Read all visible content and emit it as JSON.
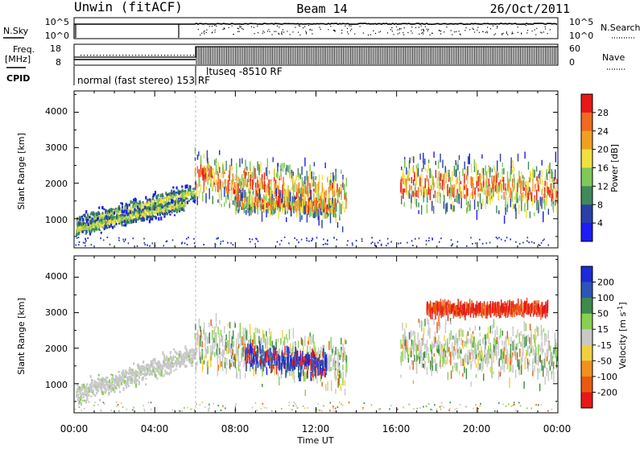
{
  "header": {
    "title_left": "Unwin (fitACF)",
    "title_center": "Beam 14",
    "title_right": "26/Oct/2011"
  },
  "status_panels": {
    "noise_left_label": "N.Sky",
    "noise_right_label": "N.Search",
    "noise_ticks_left": [
      "10^5",
      "10^0"
    ],
    "noise_ticks_right": [
      "10^5",
      "10^0"
    ],
    "freq_label_top": "Freq.",
    "freq_label_bottom": "[MHz]",
    "freq_ticks": [
      "18",
      "8"
    ],
    "nave_ticks": [
      "60",
      "0"
    ],
    "nave_label": "Nave",
    "cpid_label": "CPID",
    "cpid_segments": [
      {
        "label": "normal (fast stereo) 153 RF",
        "start_hour": 0,
        "end_hour": 6.05
      },
      {
        "label": "ltuseq -8510 RF",
        "start_hour": 6.05,
        "end_hour": 24
      }
    ]
  },
  "chart_data": [
    {
      "type": "heatmap",
      "panel": "power",
      "xlabel": "",
      "ylabel": "Slant Range [km]",
      "xlim": [
        0,
        24
      ],
      "ylim": [
        180,
        4600
      ],
      "yticks": [
        "1000",
        "2000",
        "3000",
        "4000"
      ],
      "colorbar": {
        "label": "Power [dB]",
        "ticks": [
          "4",
          "8",
          "12",
          "16",
          "20",
          "24",
          "28"
        ],
        "colors": [
          "#1c1cf5",
          "#2a3fa8",
          "#3f8a5a",
          "#7fc85a",
          "#f0e040",
          "#f0a020",
          "#f06a20",
          "#e81818"
        ]
      },
      "scatter_regions": [
        {
          "from_hour": 0.1,
          "to_hour": 6.0,
          "center_start": 850,
          "center_end": 1750,
          "spread": 220
        },
        {
          "from_hour": 0.1,
          "to_hour": 5.5,
          "center_start": 700,
          "center_end": 1400,
          "spread": 180
        },
        {
          "from_hour": 6.0,
          "to_hour": 13.5,
          "center_start": 2200,
          "center_end": 1600,
          "spread": 650
        },
        {
          "from_hour": 8.0,
          "to_hour": 13.0,
          "center_start": 1500,
          "center_end": 1300,
          "spread": 250
        },
        {
          "from_hour": 16.2,
          "to_hour": 24,
          "center_start": 2000,
          "center_end": 1800,
          "spread": 650
        }
      ]
    },
    {
      "type": "heatmap",
      "panel": "velocity",
      "xlabel": "Time UT",
      "ylabel": "Slant Range [km]",
      "xlim": [
        0,
        24
      ],
      "ylim": [
        180,
        4600
      ],
      "xticks": [
        "00:00",
        "04:00",
        "08:00",
        "12:00",
        "16:00",
        "20:00",
        "00:00"
      ],
      "yticks": [
        "1000",
        "2000",
        "3000",
        "4000"
      ],
      "colorbar": {
        "label": "Velocity [m s^-1]",
        "ticks": [
          "200",
          "100",
          "50",
          "15",
          "-15",
          "-50",
          "-100",
          "-200"
        ],
        "colors": [
          "#1c2ad8",
          "#2d55b5",
          "#3d8a4a",
          "#88d050",
          "#c8c8c8",
          "#f0d040",
          "#f09020",
          "#e85a10",
          "#e81818"
        ]
      },
      "scatter_regions": [
        {
          "from_hour": 0.1,
          "to_hour": 6.0,
          "center_start": 700,
          "center_end": 1800,
          "spread": 260
        },
        {
          "from_hour": 6.0,
          "to_hour": 13.5,
          "center_start": 2200,
          "center_end": 1500,
          "spread": 650
        },
        {
          "from_hour": 8.5,
          "to_hour": 12.5,
          "center_start": 1800,
          "center_end": 1500,
          "spread": 300
        },
        {
          "from_hour": 16.2,
          "to_hour": 24,
          "center_start": 2000,
          "center_end": 1800,
          "spread": 650
        },
        {
          "from_hour": 17.5,
          "to_hour": 23.5,
          "center_start": 3100,
          "center_end": 3100,
          "spread": 150
        }
      ]
    }
  ]
}
